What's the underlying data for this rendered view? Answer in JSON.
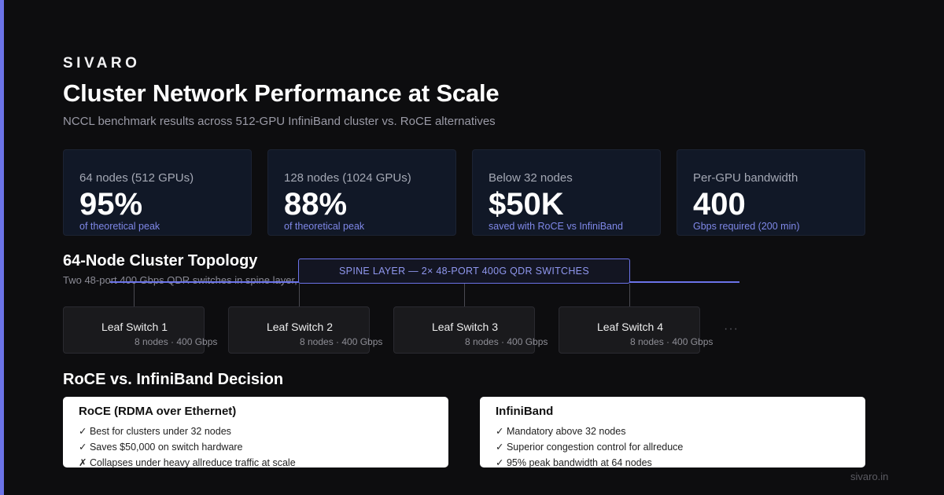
{
  "brand": "SIVARO",
  "title": "Cluster Network Performance at Scale",
  "subtitle": "NCCL benchmark results across 512-GPU InfiniBand cluster vs. RoCE alternatives",
  "stats": [
    {
      "label": "64 nodes (512 GPUs)",
      "value": "95%",
      "sub": "of theoretical peak"
    },
    {
      "label": "128 nodes (1024 GPUs)",
      "value": "88%",
      "sub": "of theoretical peak"
    },
    {
      "label": "Below 32 nodes",
      "value": "$50K",
      "sub": "saved with RoCE vs InfiniBand"
    },
    {
      "label": "Per-GPU bandwidth",
      "value": "400",
      "sub": "Gbps required (200 min)"
    }
  ],
  "topology": {
    "title": "64-Node Cluster Topology",
    "subtitle": "Two 48-port 400 Gbps QDR switches in spine layer, leaf switches connected to 8 nodes each",
    "spine_label": "SPINE LAYER — 2× 48-PORT 400G QDR SWITCHES",
    "leaves": [
      {
        "name": "Leaf Switch 1",
        "meta": "8 nodes · 400 Gbps"
      },
      {
        "name": "Leaf Switch 2",
        "meta": "8 nodes · 400 Gbps"
      },
      {
        "name": "Leaf Switch 3",
        "meta": "8 nodes · 400 Gbps"
      },
      {
        "name": "Leaf Switch 4",
        "meta": "8 nodes · 400 Gbps"
      }
    ],
    "more": "···"
  },
  "decision": {
    "title": "RoCE vs. InfiniBand Decision",
    "roce": {
      "title": "RoCE (RDMA over Ethernet)",
      "items": [
        "✓ Best for clusters under 32 nodes",
        "✓ Saves $50,000 on switch hardware",
        "✗ Collapses under heavy allreduce traffic at scale"
      ]
    },
    "infiniband": {
      "title": "InfiniBand",
      "items": [
        "✓ Mandatory above 32 nodes",
        "✓ Superior congestion control for allreduce",
        "✓ 95% peak bandwidth at 64 nodes"
      ]
    }
  },
  "footer": "sivaro.in",
  "colors": {
    "accent": "#6b73e8",
    "background": "#0d0d0f",
    "stat_card": "#111827",
    "stat_sub": "#7f88e8"
  }
}
